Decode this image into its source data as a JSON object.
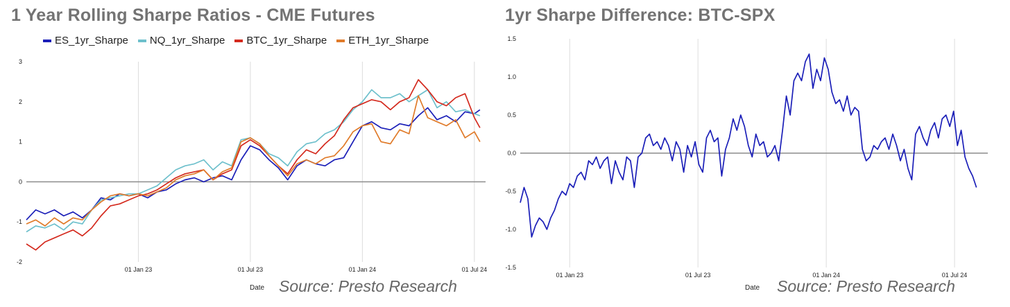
{
  "left": {
    "title": "1 Year Rolling Sharpe Ratios - CME Futures",
    "xlabel": "Date",
    "source": "Source: Presto Research",
    "colors": {
      "zero_line": "#8c8c8c",
      "grid": "#dcdcdc"
    }
  },
  "right": {
    "title": "1yr Sharpe Difference: BTC-SPX",
    "xlabel": "Date",
    "source": "Source: Presto Research",
    "colors": {
      "zero_line": "#8c8c8c",
      "grid": "#dcdcdc"
    }
  },
  "chart_data": [
    {
      "type": "line",
      "title": "1 Year Rolling Sharpe Ratios - CME Futures",
      "xlabel": "Date",
      "ylabel": "",
      "xlim": [
        0,
        24.6
      ],
      "ylim": [
        -2,
        3
      ],
      "xticks": [
        {
          "pos": 6,
          "label": "01 Jan 23"
        },
        {
          "pos": 12,
          "label": "01 Jul 23"
        },
        {
          "pos": 18,
          "label": "01 Jan 24"
        },
        {
          "pos": 24,
          "label": "01 Jul 24"
        }
      ],
      "yticks": [
        -2,
        -1,
        0,
        1,
        2,
        3
      ],
      "legend_position": "top",
      "series": [
        {
          "name": "ES_1yr_Sharpe",
          "color": "#1b1fb8",
          "x": [
            0,
            0.5,
            1,
            1.5,
            2,
            2.5,
            3,
            3.5,
            4,
            4.5,
            5,
            5.5,
            6,
            6.5,
            7,
            7.5,
            8,
            8.5,
            9,
            9.5,
            10,
            10.5,
            11,
            11.5,
            12,
            12.5,
            13,
            13.5,
            14,
            14.5,
            15,
            15.5,
            16,
            16.5,
            17,
            17.5,
            18,
            18.5,
            19,
            19.5,
            20,
            20.5,
            21,
            21.5,
            22,
            22.5,
            23,
            23.5,
            24,
            24.3
          ],
          "values": [
            -0.95,
            -0.7,
            -0.8,
            -0.7,
            -0.85,
            -0.75,
            -0.9,
            -0.7,
            -0.4,
            -0.45,
            -0.3,
            -0.35,
            -0.3,
            -0.4,
            -0.25,
            -0.2,
            -0.05,
            0.05,
            0.1,
            0.0,
            0.1,
            0.15,
            0.05,
            0.55,
            0.9,
            0.8,
            0.55,
            0.35,
            0.05,
            0.4,
            0.55,
            0.45,
            0.4,
            0.55,
            0.6,
            1.0,
            1.4,
            1.5,
            1.35,
            1.3,
            1.45,
            1.4,
            1.65,
            1.85,
            1.55,
            1.65,
            1.5,
            1.75,
            1.7,
            1.8
          ]
        },
        {
          "name": "NQ_1yr_Sharpe",
          "color": "#6ec0cc",
          "x": [
            0,
            0.5,
            1,
            1.5,
            2,
            2.5,
            3,
            3.5,
            4,
            4.5,
            5,
            5.5,
            6,
            6.5,
            7,
            7.5,
            8,
            8.5,
            9,
            9.5,
            10,
            10.5,
            11,
            11.5,
            12,
            12.5,
            13,
            13.5,
            14,
            14.5,
            15,
            15.5,
            16,
            16.5,
            17,
            17.5,
            18,
            18.5,
            19,
            19.5,
            20,
            20.5,
            21,
            21.5,
            22,
            22.5,
            23,
            23.5,
            24,
            24.3
          ],
          "values": [
            -1.25,
            -1.1,
            -1.15,
            -1.05,
            -1.2,
            -1.0,
            -1.05,
            -0.7,
            -0.45,
            -0.4,
            -0.35,
            -0.3,
            -0.3,
            -0.2,
            -0.1,
            0.1,
            0.3,
            0.4,
            0.45,
            0.55,
            0.3,
            0.5,
            0.4,
            1.05,
            1.1,
            0.95,
            0.7,
            0.6,
            0.4,
            0.75,
            0.95,
            1.0,
            1.2,
            1.3,
            1.5,
            1.8,
            2.0,
            2.3,
            2.1,
            2.1,
            2.2,
            2.0,
            2.15,
            2.3,
            1.85,
            2.0,
            1.75,
            1.8,
            1.7,
            1.65
          ]
        },
        {
          "name": "BTC_1yr_Sharpe",
          "color": "#d42a1e",
          "x": [
            0,
            0.5,
            1,
            1.5,
            2,
            2.5,
            3,
            3.5,
            4,
            4.5,
            5,
            5.5,
            6,
            6.5,
            7,
            7.5,
            8,
            8.5,
            9,
            9.5,
            10,
            10.5,
            11,
            11.5,
            12,
            12.5,
            13,
            13.5,
            14,
            14.5,
            15,
            15.5,
            16,
            16.5,
            17,
            17.5,
            18,
            18.5,
            19,
            19.5,
            20,
            20.5,
            21,
            21.5,
            22,
            22.5,
            23,
            23.5,
            24,
            24.3
          ],
          "values": [
            -1.55,
            -1.7,
            -1.5,
            -1.4,
            -1.3,
            -1.2,
            -1.35,
            -1.15,
            -0.85,
            -0.6,
            -0.55,
            -0.45,
            -0.35,
            -0.3,
            -0.2,
            -0.05,
            0.1,
            0.2,
            0.25,
            0.3,
            0.05,
            0.2,
            0.3,
            0.9,
            1.05,
            0.9,
            0.65,
            0.4,
            0.2,
            0.55,
            0.8,
            0.7,
            0.95,
            1.15,
            1.55,
            1.85,
            1.95,
            2.05,
            2.0,
            1.8,
            2.0,
            2.1,
            2.55,
            2.3,
            2.0,
            1.9,
            2.1,
            2.2,
            1.6,
            1.35
          ]
        },
        {
          "name": "ETH_1yr_Sharpe",
          "color": "#e07b2a",
          "x": [
            0,
            0.5,
            1,
            1.5,
            2,
            2.5,
            3,
            3.5,
            4,
            4.5,
            5,
            5.5,
            6,
            6.5,
            7,
            7.5,
            8,
            8.5,
            9,
            9.5,
            10,
            10.5,
            11,
            11.5,
            12,
            12.5,
            13,
            13.5,
            14,
            14.5,
            15,
            15.5,
            16,
            16.5,
            17,
            17.5,
            18,
            18.5,
            19,
            19.5,
            20,
            20.5,
            21,
            21.5,
            22,
            22.5,
            23,
            23.5,
            24,
            24.3
          ],
          "values": [
            -1.05,
            -0.95,
            -1.1,
            -0.9,
            -1.05,
            -0.9,
            -0.95,
            -0.7,
            -0.5,
            -0.35,
            -0.3,
            -0.35,
            -0.3,
            -0.35,
            -0.25,
            -0.15,
            0.05,
            0.15,
            0.2,
            0.3,
            0.05,
            0.25,
            0.35,
            1.0,
            1.1,
            0.95,
            0.65,
            0.4,
            0.15,
            0.45,
            0.55,
            0.45,
            0.6,
            0.65,
            0.9,
            1.25,
            1.4,
            1.45,
            1.0,
            0.95,
            1.3,
            1.2,
            2.15,
            1.6,
            1.5,
            1.4,
            1.55,
            1.1,
            1.25,
            1.0
          ]
        }
      ]
    },
    {
      "type": "line",
      "title": "1yr Sharpe Difference: BTC-SPX",
      "xlabel": "Date",
      "ylabel": "",
      "xlim": [
        0,
        24.6
      ],
      "ylim": [
        -1.5,
        1.5
      ],
      "xticks": [
        {
          "pos": 2.6,
          "label": "01 Jan 23"
        },
        {
          "pos": 9.35,
          "label": "01 Jul 23"
        },
        {
          "pos": 16.1,
          "label": "01 Jan 24"
        },
        {
          "pos": 22.85,
          "label": "01 Jul 24"
        }
      ],
      "yticks": [
        -1.5,
        -1.0,
        -0.5,
        0.0,
        0.5,
        1.0,
        1.5
      ],
      "yticklabels": [
        "-1.5",
        "-1.0",
        "-0.5",
        "0.0",
        "0.5",
        "1.0",
        "1.5"
      ],
      "series": [
        {
          "name": "BTC-SPX",
          "color": "#1b1fb8",
          "x": [
            0,
            0.2,
            0.4,
            0.6,
            0.8,
            1.0,
            1.2,
            1.4,
            1.6,
            1.8,
            2.0,
            2.2,
            2.4,
            2.6,
            2.8,
            3.0,
            3.2,
            3.4,
            3.6,
            3.8,
            4.0,
            4.2,
            4.4,
            4.6,
            4.8,
            5.0,
            5.2,
            5.4,
            5.6,
            5.8,
            6.0,
            6.2,
            6.4,
            6.6,
            6.8,
            7.0,
            7.2,
            7.4,
            7.6,
            7.8,
            8.0,
            8.2,
            8.4,
            8.6,
            8.8,
            9.0,
            9.2,
            9.4,
            9.6,
            9.8,
            10.0,
            10.2,
            10.4,
            10.6,
            10.8,
            11.0,
            11.2,
            11.4,
            11.6,
            11.8,
            12.0,
            12.2,
            12.4,
            12.6,
            12.8,
            13.0,
            13.2,
            13.4,
            13.6,
            13.8,
            14.0,
            14.2,
            14.4,
            14.6,
            14.8,
            15.0,
            15.2,
            15.4,
            15.6,
            15.8,
            16.0,
            16.2,
            16.4,
            16.6,
            16.8,
            17.0,
            17.2,
            17.4,
            17.6,
            17.8,
            18.0,
            18.2,
            18.4,
            18.6,
            18.8,
            19.0,
            19.2,
            19.4,
            19.6,
            19.8,
            20.0,
            20.2,
            20.4,
            20.6,
            20.8,
            21.0,
            21.2,
            21.4,
            21.6,
            21.8,
            22.0,
            22.2,
            22.4,
            22.6,
            22.8,
            23.0,
            23.2,
            23.4,
            23.6,
            23.8,
            24.0
          ],
          "values": [
            -0.65,
            -0.45,
            -0.6,
            -1.1,
            -0.95,
            -0.85,
            -0.9,
            -1.0,
            -0.85,
            -0.75,
            -0.6,
            -0.5,
            -0.55,
            -0.4,
            -0.45,
            -0.3,
            -0.25,
            -0.35,
            -0.1,
            -0.15,
            -0.05,
            -0.2,
            -0.1,
            -0.05,
            -0.4,
            -0.1,
            -0.25,
            -0.35,
            -0.05,
            -0.1,
            -0.45,
            -0.05,
            0.0,
            0.2,
            0.25,
            0.1,
            0.15,
            0.05,
            0.2,
            0.1,
            -0.1,
            0.15,
            0.05,
            -0.25,
            0.1,
            -0.05,
            0.15,
            -0.15,
            -0.25,
            0.2,
            0.3,
            0.15,
            0.2,
            -0.3,
            0.05,
            0.2,
            0.45,
            0.3,
            0.5,
            0.35,
            0.1,
            -0.05,
            0.25,
            0.1,
            0.15,
            -0.05,
            0.0,
            0.1,
            -0.1,
            0.3,
            0.75,
            0.5,
            0.95,
            1.05,
            0.95,
            1.2,
            1.3,
            0.85,
            1.1,
            0.95,
            1.25,
            1.1,
            0.8,
            0.65,
            0.7,
            0.55,
            0.75,
            0.5,
            0.6,
            0.55,
            0.05,
            -0.1,
            -0.05,
            0.1,
            0.05,
            0.15,
            0.2,
            0.05,
            0.25,
            0.1,
            -0.1,
            0.05,
            -0.2,
            -0.35,
            0.25,
            0.35,
            0.2,
            0.1,
            0.3,
            0.4,
            0.2,
            0.45,
            0.5,
            0.35,
            0.55,
            0.1,
            0.3,
            -0.05,
            -0.2,
            -0.3,
            -0.45
          ]
        }
      ]
    }
  ]
}
